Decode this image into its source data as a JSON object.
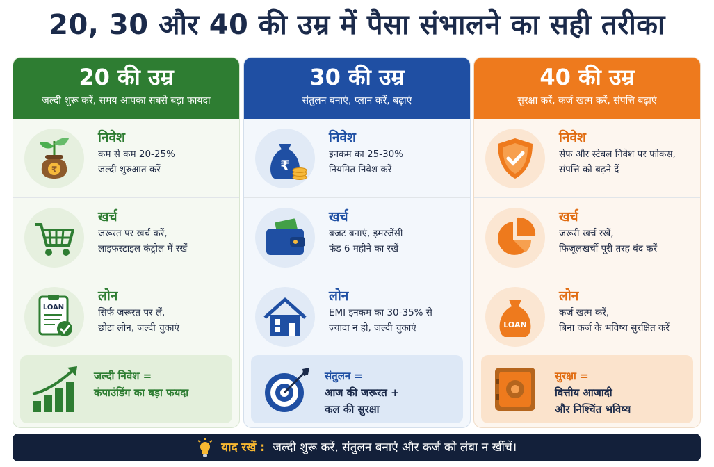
{
  "title": "20, 30 और 40 की उम्र में पैसा संभालने का सही तरीका",
  "columns": [
    {
      "age": "20 की उम्र",
      "subtitle": "जल्दी शुरू करें, समय आपका सबसे बड़ा फायदा",
      "rows": [
        {
          "icon": "money-plant-icon",
          "title": "निवेश",
          "line1": "कम से कम 20-25%",
          "line2": "जल्दी शुरुआत करें"
        },
        {
          "icon": "shopping-cart-icon",
          "title": "खर्च",
          "line1": "जरूरत पर खर्च करें,",
          "line2": "लाइफस्टाइल कंट्रोल में रखें"
        },
        {
          "icon": "loan-document-icon",
          "title": "लोन",
          "line1": "सिर्फ जरूरत पर लें,",
          "line2": "छोटा लोन, जल्दी चुकाएं",
          "badge": "LOAN"
        }
      ],
      "note": {
        "icon": "growth-chart-icon",
        "line1": "जल्दी निवेश =",
        "line2": "कंपाउंडिंग का बड़ा फयदा"
      }
    },
    {
      "age": "30 की उम्र",
      "subtitle": "संतुलन बनाएं, प्लान करें, बढ़ाएं",
      "rows": [
        {
          "icon": "rupee-bag-icon",
          "title": "निवेश",
          "line1": "इनकम का 25-30%",
          "line2": "नियमित निवेश करें",
          "symbol": "₹"
        },
        {
          "icon": "wallet-icon",
          "title": "खर्च",
          "line1": "बजट बनाएं, इमरजेंसी",
          "line2": "फंड 6 महीने का रखें"
        },
        {
          "icon": "house-icon",
          "title": "लोन",
          "line1": "EMI इनकम का 30-35% से",
          "line2": "ज़्यादा न हो, जल्दी चुकाएं"
        }
      ],
      "note": {
        "icon": "target-icon",
        "line1": "संतुलन =",
        "line2": "आज की जरूरत +",
        "line3": "कल की सुरक्षा"
      }
    },
    {
      "age": "40 की उम्र",
      "subtitle": "सुरक्षा करें, कर्ज खत्म करें, संपत्ति बढ़ाएं",
      "rows": [
        {
          "icon": "shield-check-icon",
          "title": "निवेश",
          "line1": "सेफ और स्टेबल निवेश पर फोकस,",
          "line2": "संपत्ति को बढ़ने दें"
        },
        {
          "icon": "pie-chart-icon",
          "title": "खर्च",
          "line1": "जरूरी खर्च रखें,",
          "line2": "फिजूलखर्ची पूरी तरह बंद करें"
        },
        {
          "icon": "loan-bag-icon",
          "title": "लोन",
          "line1": "कर्ज खत्म करें,",
          "line2": "बिना कर्ज के भविष्य सुरक्षित करें",
          "badge": "LOAN"
        }
      ],
      "note": {
        "icon": "safe-icon",
        "line1": "सुरक्षा =",
        "line2": "वित्तीय आजादी",
        "line3": "और निश्चिंत भविष्य"
      }
    }
  ],
  "footer": {
    "icon": "lightbulb-icon",
    "label": "याद रखें :",
    "text": "जल्दी शुरू करें, संतुलन बनाएं और कर्ज को लंबा न खींचें।"
  },
  "colors": {
    "green": "#2e7d32",
    "blue": "#1f4fa3",
    "orange": "#ee7a1d",
    "navy": "#13203a"
  }
}
